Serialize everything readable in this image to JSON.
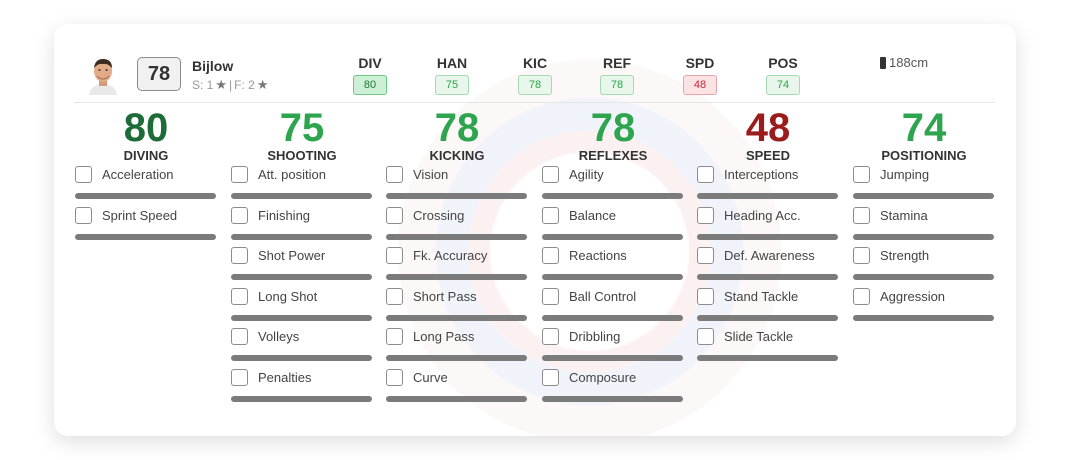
{
  "player": {
    "rating": "78",
    "name": "Bijlow",
    "skills_prefix": "S: 1",
    "separator": "|",
    "foot_prefix": "F: 2",
    "height": "188cm"
  },
  "header_attributes": [
    {
      "label": "DIV",
      "value": "80",
      "badge": "strong"
    },
    {
      "label": "HAN",
      "value": "75",
      "badge": "green"
    },
    {
      "label": "KIC",
      "value": "78",
      "badge": "green"
    },
    {
      "label": "REF",
      "value": "78",
      "badge": "green"
    },
    {
      "label": "SPD",
      "value": "48",
      "badge": "red"
    },
    {
      "label": "POS",
      "value": "74",
      "badge": "green"
    }
  ],
  "columns": [
    {
      "value": "80",
      "category": "DIVING",
      "color": "#1d6b36",
      "subs": [
        "Acceleration",
        "Sprint Speed"
      ]
    },
    {
      "value": "75",
      "category": "SHOOTING",
      "color": "#2ea44f",
      "subs": [
        "Att. position",
        "Finishing",
        "Shot Power",
        "Long Shot",
        "Volleys",
        "Penalties"
      ]
    },
    {
      "value": "78",
      "category": "KICKING",
      "color": "#2ea44f",
      "subs": [
        "Vision",
        "Crossing",
        "Fk. Accuracy",
        "Short Pass",
        "Long Pass",
        "Curve"
      ]
    },
    {
      "value": "78",
      "category": "REFLEXES",
      "color": "#2ea44f",
      "subs": [
        "Agility",
        "Balance",
        "Reactions",
        "Ball Control",
        "Dribbling",
        "Composure"
      ]
    },
    {
      "value": "48",
      "category": "SPEED",
      "color": "#9b1c1c",
      "subs": [
        "Interceptions",
        "Heading Acc.",
        "Def. Awareness",
        "Stand Tackle",
        "Slide Tackle"
      ]
    },
    {
      "value": "74",
      "category": "POSITIONING",
      "color": "#2ea44f",
      "subs": [
        "Jumping",
        "Stamina",
        "Strength",
        "Aggression"
      ]
    }
  ]
}
